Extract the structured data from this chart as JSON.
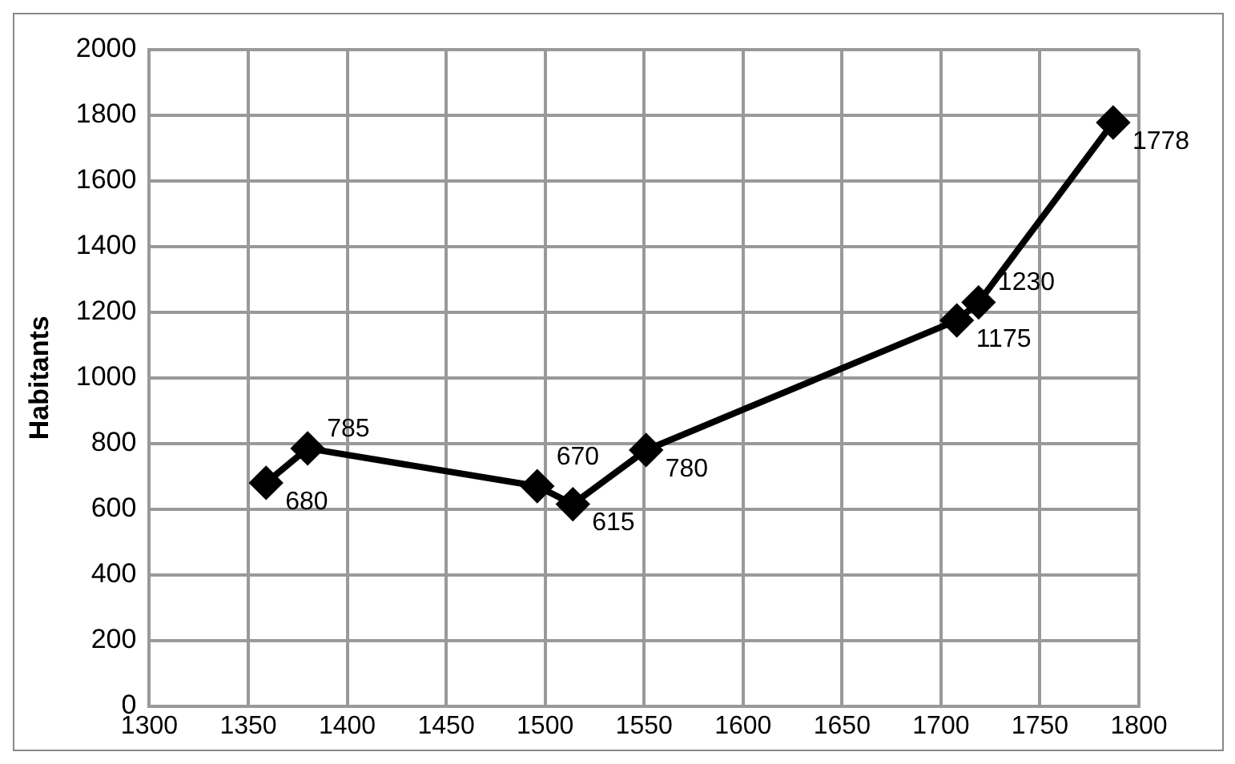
{
  "chart_data": {
    "type": "line",
    "ylabel": "Habitants",
    "x": [
      1359,
      1380,
      1496,
      1514,
      1551,
      1708,
      1719,
      1787
    ],
    "series": [
      {
        "color": "#000000",
        "values": [
          680,
          785,
          670,
          615,
          780,
          1175,
          1230,
          1778
        ]
      }
    ],
    "xlim": [
      1300,
      1800
    ],
    "xticks": [
      1300,
      1350,
      1400,
      1450,
      1500,
      1550,
      1600,
      1650,
      1700,
      1750,
      1800
    ],
    "ylim": [
      0,
      2000
    ],
    "yticks": [
      0,
      200,
      400,
      600,
      800,
      1000,
      1200,
      1400,
      1600,
      1800,
      2000
    ],
    "grid": true,
    "legend": false,
    "marker": "diamond",
    "line_style": "solid",
    "data_labels": true
  }
}
